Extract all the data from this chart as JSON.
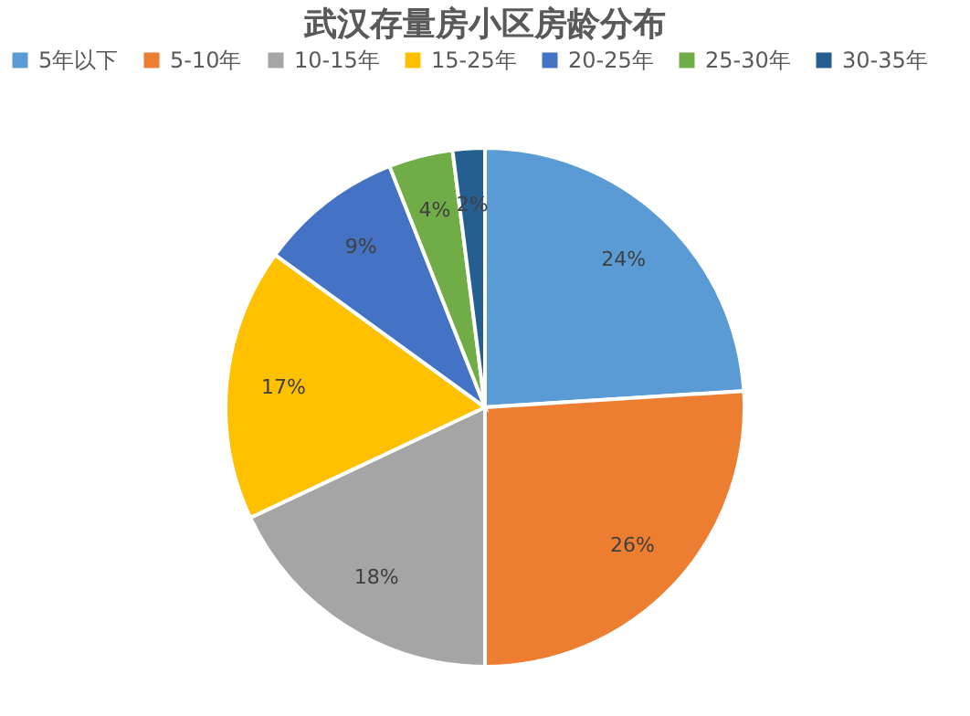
{
  "chart_data": {
    "type": "pie",
    "title": "武汉存量房小区房龄分布",
    "categories": [
      "5年以下",
      "5-10年",
      "10-15年",
      "15-25年",
      "20-25年",
      "25-30年",
      "30-35年"
    ],
    "values": [
      24,
      26,
      18,
      17,
      9,
      4,
      2
    ],
    "value_labels": [
      "24%",
      "26%",
      "18%",
      "17%",
      "9%",
      "4%",
      "2%"
    ],
    "colors": [
      "#5b9bd5",
      "#ed7d31",
      "#a5a5a5",
      "#ffc000",
      "#4472c4",
      "#70ad47",
      "#255e91"
    ],
    "legend": "top"
  }
}
